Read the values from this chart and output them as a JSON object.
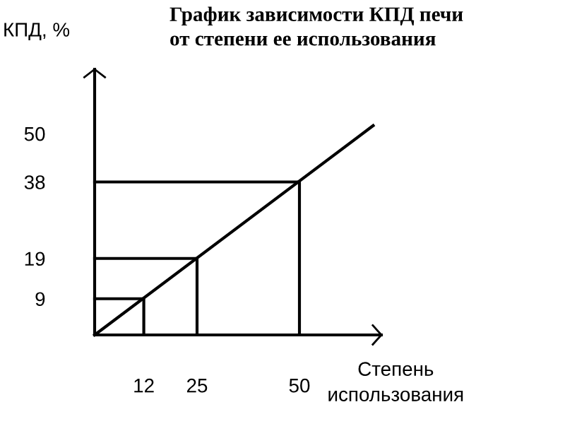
{
  "chart_data": {
    "type": "line",
    "title": "График зависимости КПД печи\nот степени ее использования",
    "xlabel": "Степень\nиспользования",
    "ylabel": "КПД, %",
    "series": [
      {
        "color": "#000000",
        "x": [
          0,
          68
        ],
        "values": [
          0,
          52
        ]
      },
      {
        "color": "#000000",
        "x": [
          0,
          12,
          12
        ],
        "values": [
          9,
          9,
          0
        ]
      },
      {
        "color": "#000000",
        "x": [
          0,
          25,
          25
        ],
        "values": [
          19,
          19,
          0
        ]
      },
      {
        "color": "#000000",
        "x": [
          0,
          50,
          50
        ],
        "values": [
          38,
          38,
          0
        ]
      }
    ],
    "xlim": [
      0,
      70
    ],
    "ylim": [
      0,
      66
    ],
    "xticks": [
      12,
      25,
      50
    ],
    "yticks": [
      9,
      19,
      38,
      50
    ],
    "grid": false,
    "legend": false,
    "marker": "none",
    "line_style": "solid"
  }
}
